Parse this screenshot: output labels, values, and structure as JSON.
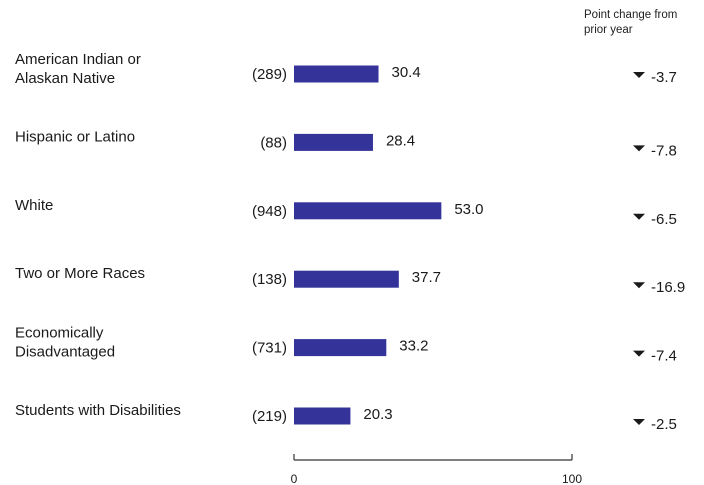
{
  "header": {
    "change_column_title": "Point change from prior year"
  },
  "chart_data": {
    "type": "bar",
    "orientation": "horizontal",
    "categories": [
      "American Indian or Alaskan Native",
      "Hispanic or Latino",
      "White",
      "Two or More Races",
      "Economically Disadvantaged",
      "Students with Disabilities"
    ],
    "category_lines": [
      [
        "American Indian or",
        "Alaskan Native"
      ],
      [
        "Hispanic or Latino"
      ],
      [
        "White"
      ],
      [
        "Two or More Races"
      ],
      [
        "Economically",
        "Disadvantaged"
      ],
      [
        "Students with Disabilities"
      ]
    ],
    "counts": [
      "(289)",
      "(88)",
      "(948)",
      "(138)",
      "(731)",
      "(219)"
    ],
    "values": [
      30.4,
      28.4,
      53.0,
      37.7,
      33.2,
      20.3
    ],
    "value_labels": [
      "30.4",
      "28.4",
      "53.0",
      "37.7",
      "33.2",
      "20.3"
    ],
    "changes": [
      -3.7,
      -7.8,
      -6.5,
      -16.9,
      -7.4,
      -2.5
    ],
    "change_labels": [
      "-3.7",
      "-7.8",
      "-6.5",
      "-16.9",
      "-7.4",
      "-2.5"
    ],
    "change_direction": "down",
    "xlim": [
      0,
      100
    ],
    "x_ticks": [
      0,
      100
    ],
    "x_tick_labels": [
      "0",
      "100"
    ],
    "bar_color": "#333399",
    "text_color": "#1a1a1a"
  }
}
